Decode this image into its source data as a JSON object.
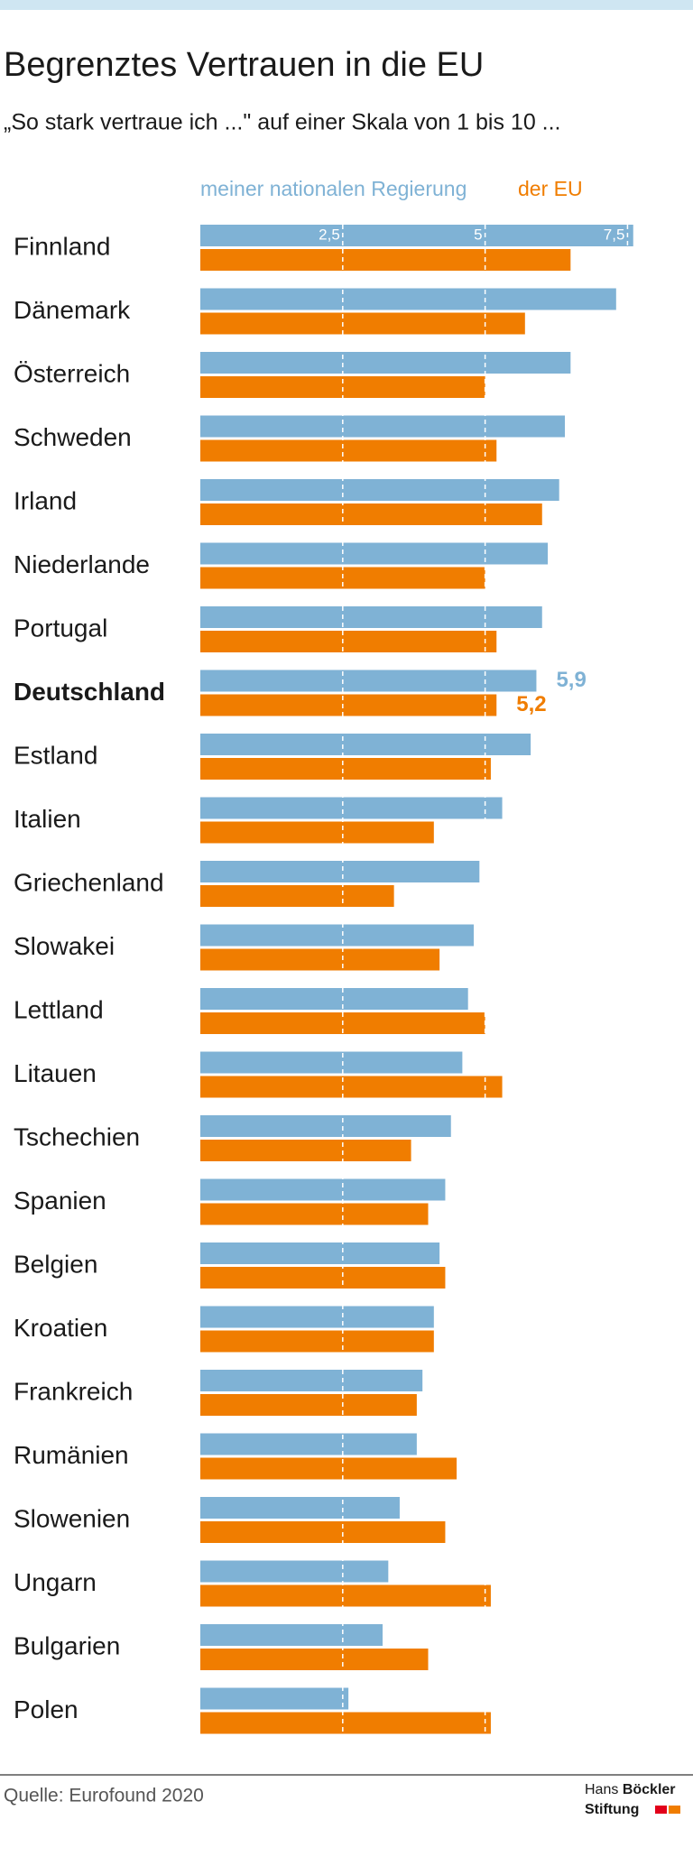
{
  "chart_data": {
    "type": "hbar",
    "title": "Begrenztes Vertrauen in die EU",
    "subtitle": "„So stark vertraue ich ...\" auf einer Skala von 1 bis 10 ...",
    "categories": [
      "Finnland",
      "Dänemark",
      "Österreich",
      "Schweden",
      "Irland",
      "Niederlande",
      "Portugal",
      "Deutschland",
      "Estland",
      "Italien",
      "Griechenland",
      "Slowakei",
      "Lettland",
      "Litauen",
      "Tschechien",
      "Spanien",
      "Belgien",
      "Kroatien",
      "Frankreich",
      "Rumänien",
      "Slowenien",
      "Ungarn",
      "Bulgarien",
      "Polen"
    ],
    "series": [
      {
        "name": "meiner nationalen Regierung",
        "color": "#7fb2d5",
        "values": [
          7.6,
          7.3,
          6.5,
          6.4,
          6.3,
          6.1,
          6.0,
          5.9,
          5.8,
          5.3,
          4.9,
          4.8,
          4.7,
          4.6,
          4.4,
          4.3,
          4.2,
          4.1,
          3.9,
          3.8,
          3.5,
          3.3,
          3.2,
          2.6
        ],
        "value_labels": [
          null,
          null,
          null,
          null,
          null,
          null,
          null,
          "5,9",
          null,
          null,
          null,
          null,
          null,
          null,
          null,
          null,
          null,
          null,
          null,
          null,
          null,
          null,
          null,
          null
        ]
      },
      {
        "name": "der EU",
        "color": "#f07d00",
        "values": [
          6.5,
          5.7,
          5.0,
          5.2,
          6.0,
          5.0,
          5.2,
          5.2,
          5.1,
          4.1,
          3.4,
          4.2,
          5.0,
          5.3,
          3.7,
          4.0,
          4.3,
          4.1,
          3.8,
          4.5,
          4.3,
          5.1,
          4.0,
          5.1
        ],
        "value_labels": [
          null,
          null,
          null,
          null,
          null,
          null,
          null,
          "5,2",
          null,
          null,
          null,
          null,
          null,
          null,
          null,
          null,
          null,
          null,
          null,
          null,
          null,
          null,
          null,
          null
        ]
      }
    ],
    "xlim": [
      0,
      8
    ],
    "xticks": [
      {
        "value": 2.5,
        "label": "2,5"
      },
      5,
      {
        "value": 7.5,
        "label": "7,5"
      }
    ],
    "grid": true,
    "source": "Quelle: Eurofound 2020",
    "logo": {
      "first": "Hans",
      "second": "Böckler",
      "third": "Stiftung"
    }
  }
}
